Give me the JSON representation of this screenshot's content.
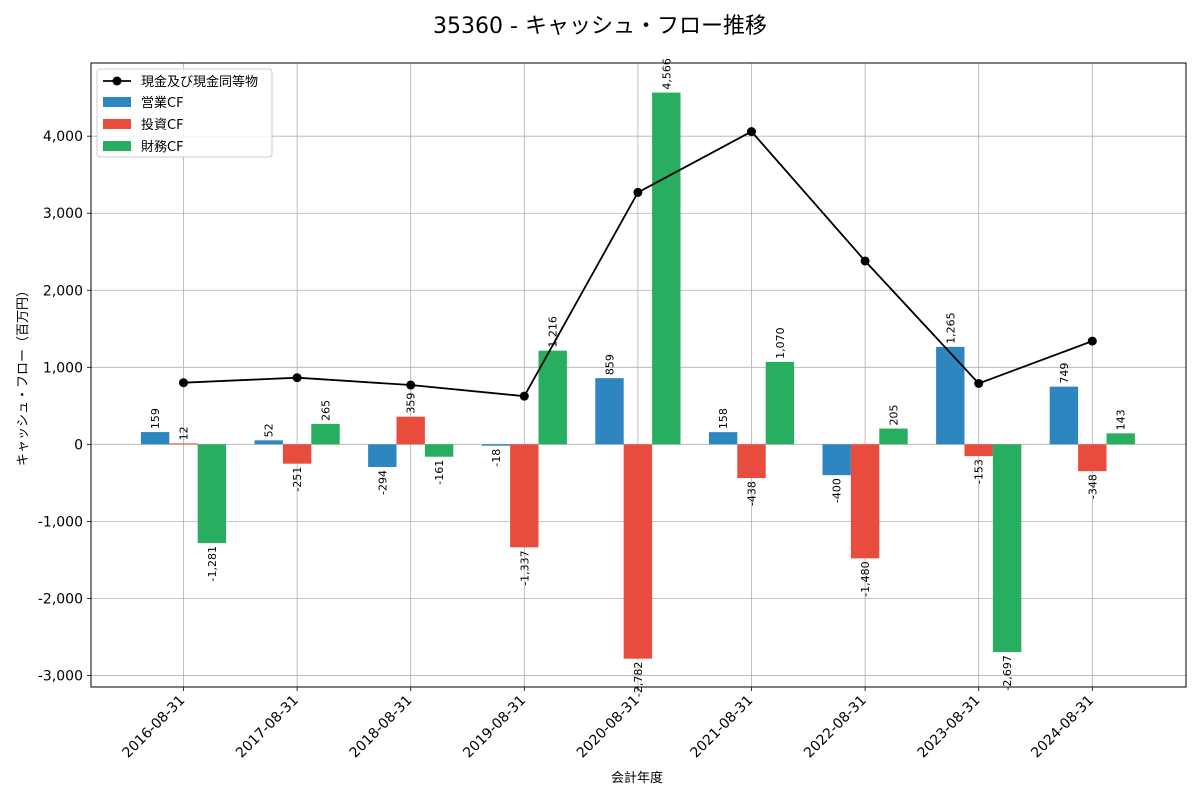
{
  "chart_data": {
    "type": "bar",
    "title": "35360 - キャッシュ・フロー推移",
    "xlabel": "会計年度",
    "ylabel": "キャッシュ・フロー（百万円）",
    "ylim": [
      -3150,
      4950
    ],
    "yticks": [
      -3000,
      -2000,
      -1000,
      0,
      1000,
      2000,
      3000,
      4000
    ],
    "ytick_labels": [
      "-3,000",
      "-2,000",
      "-1,000",
      "0",
      "1,000",
      "2,000",
      "3,000",
      "4,000"
    ],
    "grid": true,
    "legend_position": "top-left",
    "categories": [
      "2016-08-31",
      "2017-08-31",
      "2018-08-31",
      "2019-08-31",
      "2020-08-31",
      "2021-08-31",
      "2022-08-31",
      "2023-08-31",
      "2024-08-31"
    ],
    "series": [
      {
        "name": "営業CF",
        "color": "#2e86c1",
        "values": [
          159,
          52,
          -294,
          -18,
          859,
          158,
          -400,
          1265,
          749
        ],
        "labels": [
          "159",
          "52",
          "-294",
          "-18",
          "859",
          "158",
          "-400",
          "1,265",
          "749"
        ]
      },
      {
        "name": "投資CF",
        "color": "#e74c3c",
        "values": [
          12,
          -251,
          359,
          -1337,
          -2782,
          -438,
          -1480,
          -153,
          -348
        ],
        "labels": [
          "12",
          "-251",
          "359",
          "-1,337",
          "-2,782",
          "-438",
          "-1,480",
          "-153",
          "-348"
        ]
      },
      {
        "name": "財務CF",
        "color": "#27ae60",
        "values": [
          -1281,
          265,
          -161,
          1216,
          4566,
          1070,
          205,
          -2697,
          143
        ],
        "labels": [
          "-1,281",
          "265",
          "-161",
          "1,216",
          "4,566",
          "1,070",
          "205",
          "-2,697",
          "143"
        ]
      }
    ],
    "line_series": {
      "name": "現金及び現金同等物",
      "color": "#000000",
      "values": [
        800,
        865,
        770,
        625,
        3270,
        4060,
        2380,
        790,
        1340
      ]
    }
  }
}
